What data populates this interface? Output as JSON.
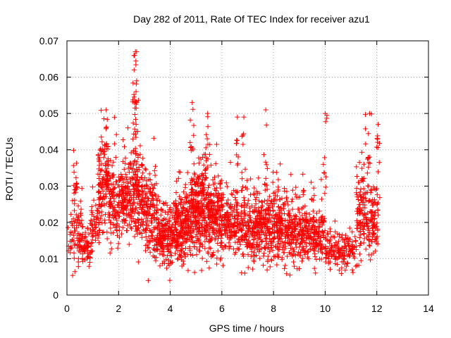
{
  "chart_data": {
    "type": "scatter",
    "title": "Day 282 of 2011, Rate Of TEC Index for receiver azu1",
    "xlabel": "GPS time / hours",
    "ylabel": "ROTI / TECUs",
    "xlim": [
      0,
      14
    ],
    "ylim": [
      0,
      0.07
    ],
    "x_ticks": [
      "0",
      "2",
      "4",
      "6",
      "8",
      "10",
      "12",
      "14"
    ],
    "y_ticks": [
      "0",
      "0.01",
      "0.02",
      "0.03",
      "0.04",
      "0.05",
      "0.06",
      "0.07"
    ],
    "grid": true,
    "marker": "plus",
    "color": "#ff0000",
    "n_points_approx": 2400,
    "envelope_note": "Dense cloud of ROTI samples between 0 and 12 h; values shown are the visible clusters and peaks.",
    "peaks": [
      {
        "x": 2.65,
        "y": 0.067
      },
      {
        "x": 2.62,
        "y": 0.066
      },
      {
        "x": 2.6,
        "y": 0.062
      },
      {
        "x": 2.7,
        "y": 0.059
      },
      {
        "x": 2.7,
        "y": 0.053
      },
      {
        "x": 1.52,
        "y": 0.051
      },
      {
        "x": 4.85,
        "y": 0.053
      },
      {
        "x": 5.45,
        "y": 0.05
      },
      {
        "x": 6.6,
        "y": 0.049
      },
      {
        "x": 6.85,
        "y": 0.049
      },
      {
        "x": 7.7,
        "y": 0.051
      },
      {
        "x": 10.0,
        "y": 0.05
      },
      {
        "x": 11.72,
        "y": 0.05
      },
      {
        "x": 12.05,
        "y": 0.047
      }
    ],
    "clusters": [
      {
        "x0": 0.0,
        "x1": 0.6,
        "ycenter": 0.017,
        "spread": 0.007,
        "count": 60
      },
      {
        "x0": 0.2,
        "x1": 0.4,
        "ycenter": 0.03,
        "spread": 0.005,
        "count": 20
      },
      {
        "x0": 0.4,
        "x1": 1.0,
        "ycenter": 0.013,
        "spread": 0.004,
        "count": 80
      },
      {
        "x0": 0.9,
        "x1": 1.3,
        "ycenter": 0.02,
        "spread": 0.005,
        "count": 50
      },
      {
        "x0": 1.2,
        "x1": 1.6,
        "ycenter": 0.03,
        "spread": 0.01,
        "count": 120
      },
      {
        "x0": 1.6,
        "x1": 2.0,
        "ycenter": 0.024,
        "spread": 0.009,
        "count": 100
      },
      {
        "x0": 2.0,
        "x1": 2.6,
        "ycenter": 0.027,
        "spread": 0.008,
        "count": 160
      },
      {
        "x0": 2.6,
        "x1": 3.0,
        "ycenter": 0.025,
        "spread": 0.01,
        "count": 110
      },
      {
        "x0": 3.0,
        "x1": 3.5,
        "ycenter": 0.022,
        "spread": 0.009,
        "count": 140
      },
      {
        "x0": 3.5,
        "x1": 4.2,
        "ycenter": 0.016,
        "spread": 0.006,
        "count": 200
      },
      {
        "x0": 4.2,
        "x1": 4.8,
        "ycenter": 0.019,
        "spread": 0.008,
        "count": 220
      },
      {
        "x0": 4.8,
        "x1": 5.4,
        "ycenter": 0.023,
        "spread": 0.01,
        "count": 260
      },
      {
        "x0": 5.4,
        "x1": 6.0,
        "ycenter": 0.021,
        "spread": 0.009,
        "count": 200
      },
      {
        "x0": 6.0,
        "x1": 7.0,
        "ycenter": 0.019,
        "spread": 0.007,
        "count": 220
      },
      {
        "x0": 7.0,
        "x1": 7.8,
        "ycenter": 0.018,
        "spread": 0.008,
        "count": 220
      },
      {
        "x0": 7.8,
        "x1": 8.4,
        "ycenter": 0.018,
        "spread": 0.008,
        "count": 170
      },
      {
        "x0": 8.4,
        "x1": 9.2,
        "ycenter": 0.017,
        "spread": 0.007,
        "count": 200
      },
      {
        "x0": 9.2,
        "x1": 10.0,
        "ycenter": 0.016,
        "spread": 0.006,
        "count": 180
      },
      {
        "x0": 10.0,
        "x1": 11.2,
        "ycenter": 0.012,
        "spread": 0.004,
        "count": 160
      },
      {
        "x0": 11.2,
        "x1": 11.8,
        "ycenter": 0.022,
        "spread": 0.01,
        "count": 140
      },
      {
        "x0": 11.8,
        "x1": 12.05,
        "ycenter": 0.02,
        "spread": 0.008,
        "count": 60
      }
    ]
  }
}
